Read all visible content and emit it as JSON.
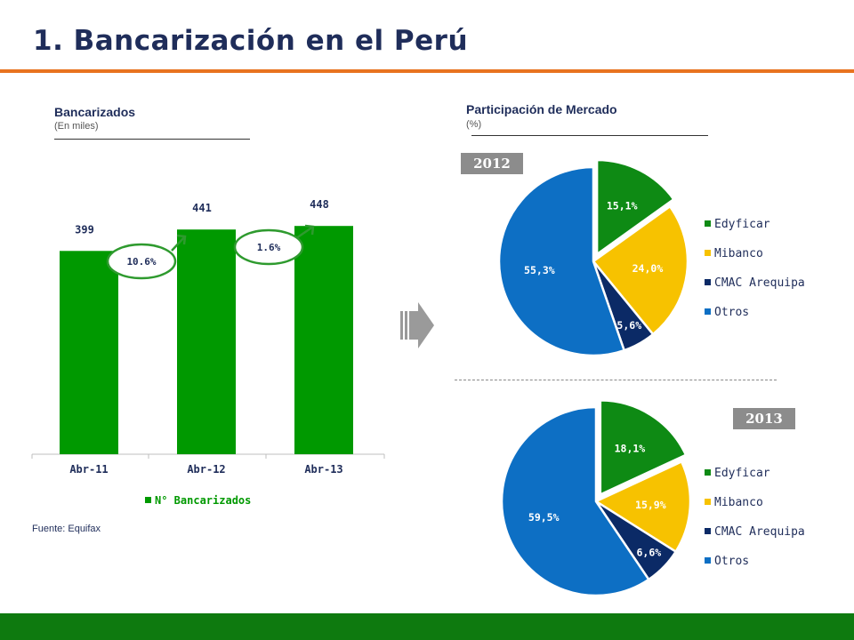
{
  "page": {
    "title": "1. Bancarización en el Perú",
    "source": "Fuente: Equifax"
  },
  "colors": {
    "title": "#1f2d5a",
    "accent_rule": "#e8731f",
    "footer": "#0e7a0f",
    "bar": "#009900",
    "growth": "#2e9a2e",
    "Edyficar": "#0e8a14",
    "Mibanco": "#f7c200",
    "CMAC Arequipa": "#0b2a66",
    "Otros": "#0d6fc4"
  },
  "left": {
    "heading": "Bancarizados",
    "subheading": "(En miles)"
  },
  "right": {
    "heading": "Participación de Mercado",
    "subheading": "(%)"
  },
  "chart_data": [
    {
      "type": "bar",
      "title": "Bancarizados",
      "subtitle": "(En miles)",
      "categories": [
        "Abr-11",
        "Abr-12",
        "Abr-13"
      ],
      "series": [
        {
          "name": "N° Bancarizados",
          "values": [
            399,
            441,
            448
          ],
          "labels": [
            "399",
            "441",
            "448"
          ]
        }
      ],
      "growth_annotations": [
        "10.6%",
        "1.6%"
      ],
      "ylim": [
        0,
        560
      ],
      "grid": false,
      "legend": "bottom"
    },
    {
      "type": "pie",
      "year": "2012",
      "slices": [
        {
          "label": "Edyficar",
          "value": 15.1,
          "text": "15,1%"
        },
        {
          "label": "Mibanco",
          "value": 24.0,
          "text": "24,0%"
        },
        {
          "label": "CMAC Arequipa",
          "value": 5.6,
          "text": "5,6%"
        },
        {
          "label": "Otros",
          "value": 55.3,
          "text": "55,3%"
        }
      ],
      "legend": "right"
    },
    {
      "type": "pie",
      "year": "2013",
      "slices": [
        {
          "label": "Edyficar",
          "value": 18.1,
          "text": "18,1%"
        },
        {
          "label": "Mibanco",
          "value": 15.9,
          "text": "15,9%"
        },
        {
          "label": "CMAC Arequipa",
          "value": 6.6,
          "text": "6,6%"
        },
        {
          "label": "Otros",
          "value": 59.5,
          "text": "59,5%"
        }
      ],
      "legend": "right"
    }
  ]
}
